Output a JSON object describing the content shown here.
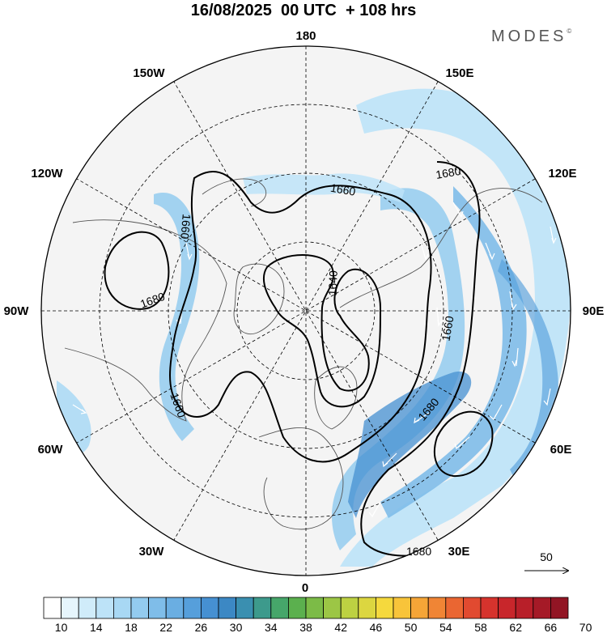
{
  "header": {
    "title": "16/08/2025  00 UTC  + 108 hrs",
    "brand": "MODES",
    "brand_mark": "©"
  },
  "map": {
    "projection": "polar stereographic, north pole",
    "longitude_labels": [
      "180",
      "150E",
      "120E",
      "90E",
      "60E",
      "30E",
      "0",
      "30W",
      "60W",
      "90W",
      "120W",
      "150W"
    ],
    "contour_labels": [
      "1640",
      "1660",
      "1660",
      "1660",
      "1660",
      "1680",
      "1680",
      "1680",
      "1680"
    ],
    "reference_vector": {
      "value": "50"
    },
    "land_color": "#f2f2f2",
    "grid_color": "#000000"
  },
  "colorbar": {
    "ticks": [
      "10",
      "14",
      "18",
      "22",
      "26",
      "30",
      "34",
      "38",
      "42",
      "46",
      "50",
      "54",
      "58",
      "62",
      "66",
      "70"
    ],
    "colors": [
      "#ffffff",
      "#e6f5fc",
      "#d0ecfa",
      "#bde3f8",
      "#a8d8f4",
      "#93cbef",
      "#7fbde9",
      "#6aaee2",
      "#569fdb",
      "#4690d2",
      "#3c88c4",
      "#3a8fb0",
      "#3d9a8c",
      "#46a66a",
      "#5bb04e",
      "#7cbb47",
      "#9cc645",
      "#bdd142",
      "#dcd640",
      "#f5d93d",
      "#f8c43a",
      "#f5a537",
      "#f08535",
      "#ea6632",
      "#e14a30",
      "#d6332d",
      "#c8262b",
      "#b81f29",
      "#a51a27",
      "#921524"
    ]
  }
}
